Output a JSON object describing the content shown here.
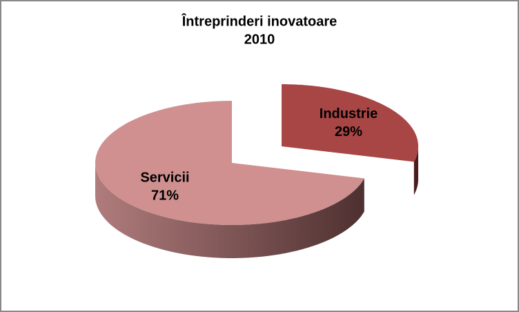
{
  "chart_data": {
    "type": "pie",
    "title": "Întreprinderi inovatoare",
    "subtitle": "2010",
    "categories": [
      "Industrie",
      "Servicii"
    ],
    "values": [
      29,
      71
    ],
    "value_labels": [
      "29%",
      "71%"
    ],
    "colors": [
      "#a84545",
      "#d09090"
    ],
    "side_colors": [
      "#4a1c1c",
      "#7a4a4a"
    ]
  }
}
